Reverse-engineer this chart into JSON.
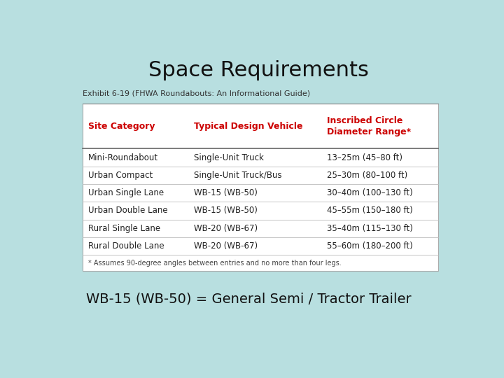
{
  "title": "Space Requirements",
  "subtitle": "Exhibit 6-19 (FHWA Roundabouts: An Informational Guide)",
  "footer_note": "WB-15 (WB-50) = General Semi / Tractor Trailer",
  "bg_color": "#b8dfe0",
  "header_color": "#cc0000",
  "col_headers": [
    "Site Category",
    "Typical Design Vehicle",
    "Inscribed Circle\nDiameter Range*"
  ],
  "rows": [
    [
      "Mini-Roundabout",
      "Single-Unit Truck",
      "13–25m (45–80 ft)"
    ],
    [
      "Urban Compact",
      "Single-Unit Truck/Bus",
      "25–30m (80–100 ft)"
    ],
    [
      "Urban Single Lane",
      "WB-15 (WB-50)",
      "30–40m (100–130 ft)"
    ],
    [
      "Urban Double Lane",
      "WB-15 (WB-50)",
      "45–55m (150–180 ft)"
    ],
    [
      "Rural Single Lane",
      "WB-20 (WB-67)",
      "35–40m (115–130 ft)"
    ],
    [
      "Rural Double Lane",
      "WB-20 (WB-67)",
      "55–60m (180–200 ft)"
    ]
  ],
  "footnote": "* Assumes 90-degree angles between entries and no more than four legs.",
  "title_fontsize": 22,
  "subtitle_fontsize": 8,
  "header_fontsize": 9,
  "row_fontsize": 8.5,
  "footnote_fontsize": 7,
  "footer_fontsize": 14
}
